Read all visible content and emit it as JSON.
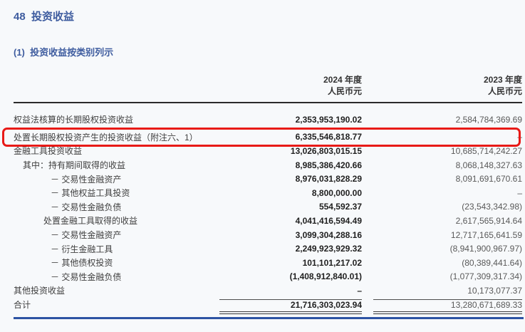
{
  "page": {
    "section_title": "48  投资收益",
    "subsection_title": "(1)  投资收益按类别列示"
  },
  "table": {
    "columns": [
      {
        "year": "2024 年度",
        "unit": "人民币元"
      },
      {
        "year": "2023 年度",
        "unit": "人民币元"
      }
    ],
    "rows": [
      {
        "label": "权益法核算的长期股权投资收益",
        "indent": 0,
        "v2024": "2,353,953,190.02",
        "v2023": "2,584,784,369.69",
        "highlight": false,
        "total": false
      },
      {
        "label": "处置长期股权投资产生的投资收益（附注六、1）",
        "indent": 0,
        "v2024": "6,335,546,818.77",
        "v2023": "–",
        "highlight": true,
        "total": false
      },
      {
        "label": "金融工具投资收益",
        "indent": 0,
        "v2024": "13,026,803,015.15",
        "v2023": "10,685,714,242.27",
        "highlight": false,
        "total": false
      },
      {
        "label": "其中：持有期间取得的收益",
        "indent": 1,
        "v2024": "8,985,386,420.66",
        "v2023": "8,068,148,327.63",
        "highlight": false,
        "total": false
      },
      {
        "label": "－ 交易性金融资产",
        "indent": 3,
        "v2024": "8,976,031,828.29",
        "v2023": "8,091,691,670.61",
        "highlight": false,
        "total": false
      },
      {
        "label": "－ 其他权益工具投资",
        "indent": 3,
        "v2024": "8,800,000.00",
        "v2023": "–",
        "highlight": false,
        "total": false
      },
      {
        "label": "－ 交易性金融负债",
        "indent": 3,
        "v2024": "554,592.37",
        "v2023": "(23,543,342.98)",
        "highlight": false,
        "total": false
      },
      {
        "label": "处置金融工具取得的收益",
        "indent": 2,
        "v2024": "4,041,416,594.49",
        "v2023": "2,617,565,914.64",
        "highlight": false,
        "total": false
      },
      {
        "label": "－ 交易性金融资产",
        "indent": 3,
        "v2024": "3,099,304,288.16",
        "v2023": "12,717,165,641.59",
        "highlight": false,
        "total": false
      },
      {
        "label": "－ 衍生金融工具",
        "indent": 3,
        "v2024": "2,249,923,929.32",
        "v2023": "(8,941,900,967.97)",
        "highlight": false,
        "total": false
      },
      {
        "label": "－ 其他债权投资",
        "indent": 3,
        "v2024": "101,101,217.02",
        "v2023": "(80,389,441.64)",
        "highlight": false,
        "total": false
      },
      {
        "label": "－ 交易性金融负债",
        "indent": 3,
        "v2024": "(1,408,912,840.01)",
        "v2023": "(1,077,309,317.34)",
        "highlight": false,
        "total": false
      },
      {
        "label": "其他投资收益",
        "indent": 0,
        "v2024": "–",
        "v2023": "10,173,077.37",
        "highlight": false,
        "total": false
      },
      {
        "label": "合计",
        "indent": 0,
        "v2024": "21,716,303,023.94",
        "v2023": "13,280,671,689.33",
        "highlight": false,
        "total": true
      }
    ]
  },
  "annotation": {
    "highlight_box": "red-rounded-rectangle"
  },
  "colors": {
    "title_blue": "#3e5c9f",
    "highlight_red": "#e81a17",
    "bottom_divider_blue": "#2d53a3"
  }
}
